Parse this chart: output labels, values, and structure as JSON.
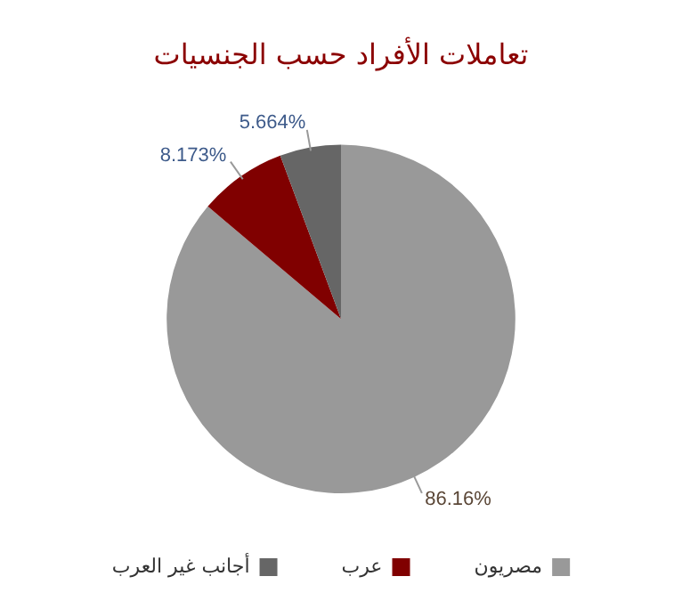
{
  "chart_data": {
    "type": "pie",
    "title": "تعاملات الأفراد حسب الجنسيات",
    "categories": [
      "مصريون",
      "عرب",
      "أجانب غير العرب"
    ],
    "values": [
      86.16,
      8.173,
      5.664
    ],
    "colors": [
      "#999999",
      "#800000",
      "#666666"
    ],
    "value_labels": [
      "86.16%",
      "8.173%",
      "5.664%"
    ],
    "legend": "bottom"
  }
}
